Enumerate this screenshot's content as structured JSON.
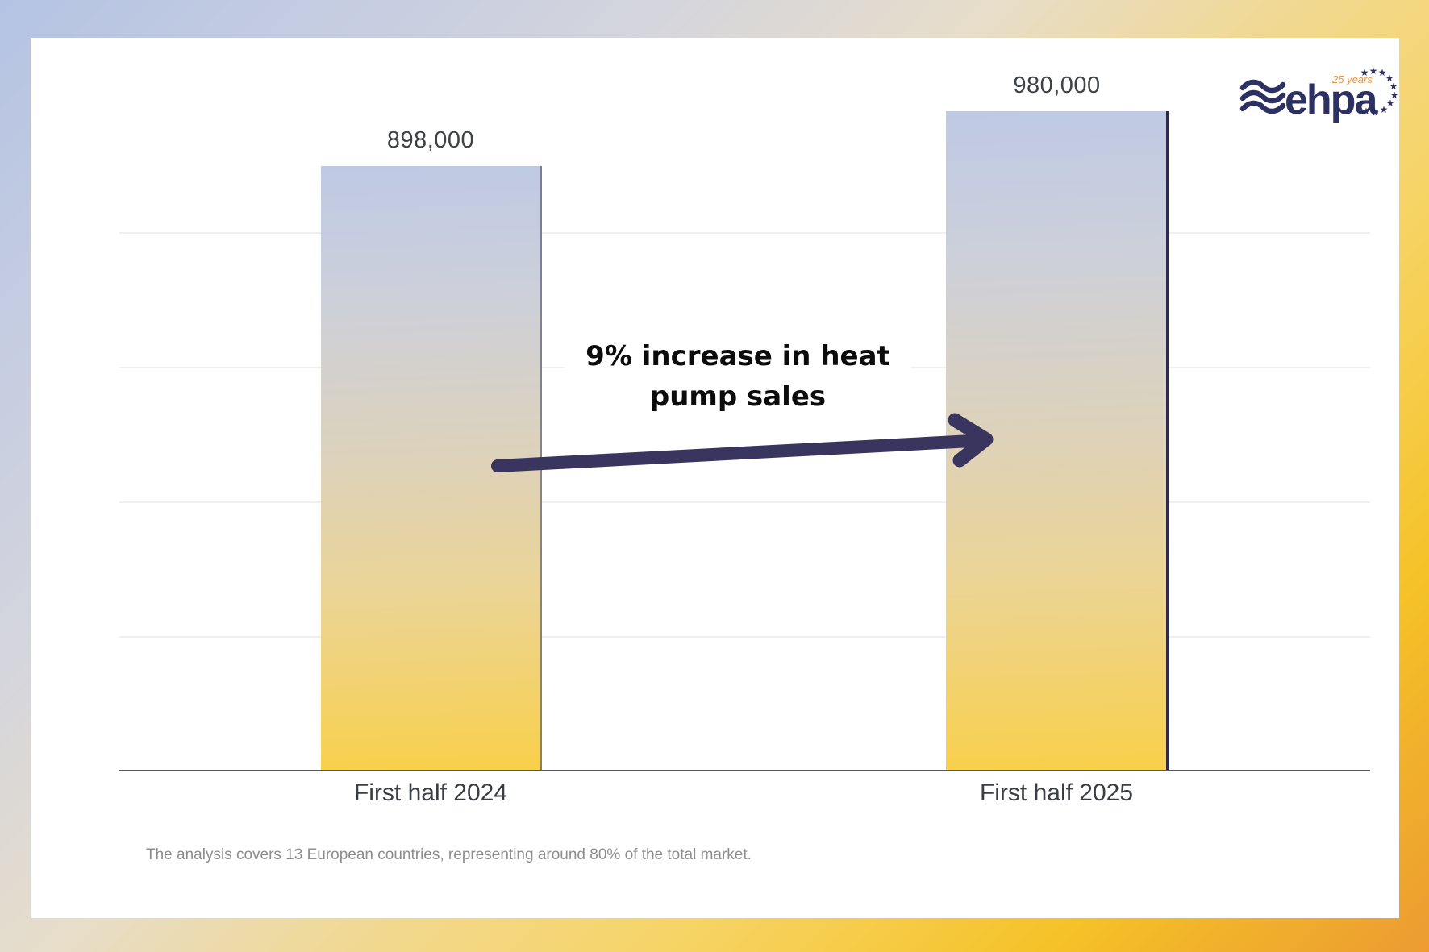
{
  "chart_data": {
    "type": "bar",
    "title": "",
    "categories": [
      "First half 2024",
      "First half 2025"
    ],
    "values": [
      898000,
      980000
    ],
    "value_labels": [
      "898,000",
      "980,000"
    ],
    "xlabel": "",
    "ylabel": "",
    "ylim": [
      0,
      1000000
    ],
    "gridline_values": [
      200000,
      400000,
      600000,
      800000
    ],
    "grid": "horizontal",
    "legend": "none",
    "annotation_text": "9% increase in heat pump sales",
    "footnote": "The analysis covers 13 European countries, representing around 80% of the total market."
  },
  "annotation": {
    "line1": "9% increase in heat",
    "line2": "pump sales"
  },
  "footer": {
    "note": "The analysis covers 13 European countries, representing around 80% of the total market."
  },
  "logo": {
    "brand": "ehpa",
    "badge": "25 years"
  },
  "colors": {
    "navy": "#2d3162",
    "arrow_navy": "#3a355f",
    "badge_orange": "#e8963f",
    "bar_gradient_top": "#bec9e4",
    "bar_gradient_bottom": "#f9d04a",
    "frame_blue": "#b4c3e3",
    "frame_yellow": "#f2d88c",
    "frame_orange": "#ec9b31",
    "gridline": "#efefef",
    "axis": "#54575c",
    "value_label": "#3f4347",
    "category_label": "#393e44",
    "footnote_gray": "#8d8d8d",
    "annotation_black": "#0c0c0c"
  }
}
